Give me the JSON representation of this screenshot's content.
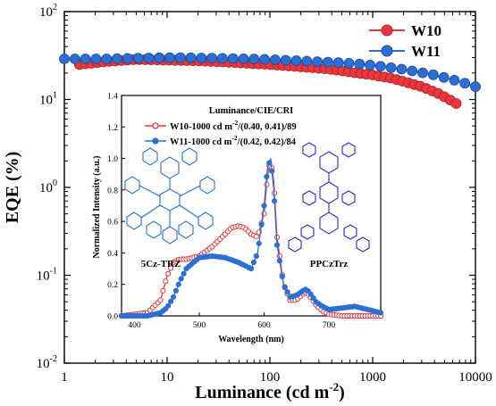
{
  "chart_data": [
    {
      "type": "scatter",
      "xlabel": "Luminance (cd m",
      "xlabel_sup": "-2",
      "xlabel_end": ")",
      "ylabel": "EQE (%)",
      "xscale": "log",
      "yscale": "log",
      "xlim": [
        1,
        10000
      ],
      "ylim": [
        0.01,
        100
      ],
      "x_ticks": [
        {
          "v": 1,
          "label": "1"
        },
        {
          "v": 10,
          "label": "10"
        },
        {
          "v": 100,
          "label": "100"
        },
        {
          "v": 1000,
          "label": "1000"
        },
        {
          "v": 10000,
          "label": "10000"
        }
      ],
      "y_ticks": [
        {
          "v": 0.01,
          "base": "10",
          "exp": "-2"
        },
        {
          "v": 0.1,
          "base": "10",
          "exp": "-1"
        },
        {
          "v": 1,
          "base": "10",
          "exp": "0"
        },
        {
          "v": 10,
          "base": "10",
          "exp": "1"
        },
        {
          "v": 100,
          "base": "10",
          "exp": "2"
        }
      ],
      "legend_position": "top-right",
      "series": [
        {
          "name": "W10",
          "color": "#e8383d",
          "x": [
            1.4,
            2.6,
            5.0,
            10.0,
            20.0,
            40.0,
            70.0,
            100.0,
            200.0,
            400.0,
            700.0,
            1000.0,
            1500.0,
            2000.0,
            3000.0,
            4500.0,
            6500.0
          ],
          "y": [
            25.0,
            27.0,
            28.5,
            28.0,
            27.5,
            26.5,
            25.5,
            25.0,
            23.5,
            22.0,
            20.0,
            19.0,
            17.5,
            16.0,
            14.0,
            11.5,
            9.0
          ]
        },
        {
          "name": "W11",
          "color": "#2b6fd6",
          "x": [
            1.0,
            2.6,
            5.0,
            12.0,
            30.0,
            60.0,
            100.0,
            200.0,
            400.0,
            700.0,
            1000.0,
            2000.0,
            4000.0,
            7000.0,
            10000.0
          ],
          "y": [
            29.0,
            29.0,
            29.5,
            30.0,
            29.5,
            29.0,
            28.5,
            27.5,
            26.5,
            25.5,
            24.5,
            22.0,
            19.0,
            16.0,
            14.0
          ]
        }
      ]
    },
    {
      "type": "line",
      "title": "Luminance/CIE/CRI",
      "xlabel": "Wavelength (nm)",
      "ylabel": "Normalized Intensity (a.u.)",
      "xlim": [
        380,
        780
      ],
      "ylim": [
        0.0,
        1.4
      ],
      "x_ticks": [
        400,
        500,
        600,
        700
      ],
      "y_ticks": [
        "0.0",
        "0.2",
        "0.4",
        "0.6",
        "0.8",
        "1.0",
        "1.2",
        "1.4"
      ],
      "series": [
        {
          "name": "W10-1000 cd m",
          "name_sup": "-2",
          "name_end": "/(0.40, 0.41)/89",
          "color": "#e8383d",
          "x": [
            380,
            420,
            440,
            450,
            460,
            470,
            480,
            500,
            520,
            540,
            550,
            560,
            570,
            580,
            590,
            600,
            605,
            610,
            615,
            620,
            630,
            640,
            650,
            660,
            665,
            670,
            680,
            690,
            700,
            720,
            740,
            760,
            780
          ],
          "y": [
            0.0,
            0.02,
            0.1,
            0.25,
            0.34,
            0.36,
            0.36,
            0.38,
            0.44,
            0.52,
            0.56,
            0.57,
            0.56,
            0.52,
            0.5,
            0.65,
            0.88,
            1.0,
            0.85,
            0.5,
            0.2,
            0.1,
            0.1,
            0.14,
            0.15,
            0.13,
            0.07,
            0.03,
            0.01,
            0.0,
            0.0,
            0.0,
            0.0
          ]
        },
        {
          "name": "W11-1000 cd m",
          "name_sup": "-2",
          "name_end": "/(0.42, 0.42)/84",
          "color": "#2b6fd6",
          "x": [
            380,
            420,
            440,
            450,
            460,
            470,
            480,
            500,
            520,
            540,
            560,
            580,
            590,
            600,
            605,
            610,
            615,
            620,
            630,
            640,
            650,
            660,
            665,
            670,
            680,
            690,
            700,
            720,
            740,
            760,
            780
          ],
          "y": [
            0.0,
            0.0,
            0.02,
            0.05,
            0.12,
            0.22,
            0.3,
            0.37,
            0.38,
            0.37,
            0.34,
            0.3,
            0.4,
            0.7,
            0.93,
            1.0,
            0.8,
            0.45,
            0.2,
            0.12,
            0.13,
            0.16,
            0.17,
            0.15,
            0.09,
            0.06,
            0.04,
            0.05,
            0.06,
            0.04,
            0.02
          ]
        }
      ]
    }
  ],
  "molecules": {
    "left_label": "5Cz-TRZ",
    "right_label": "PPCzTrz",
    "left_color": "#2b6fd6",
    "right_color": "#2a2ad0"
  }
}
